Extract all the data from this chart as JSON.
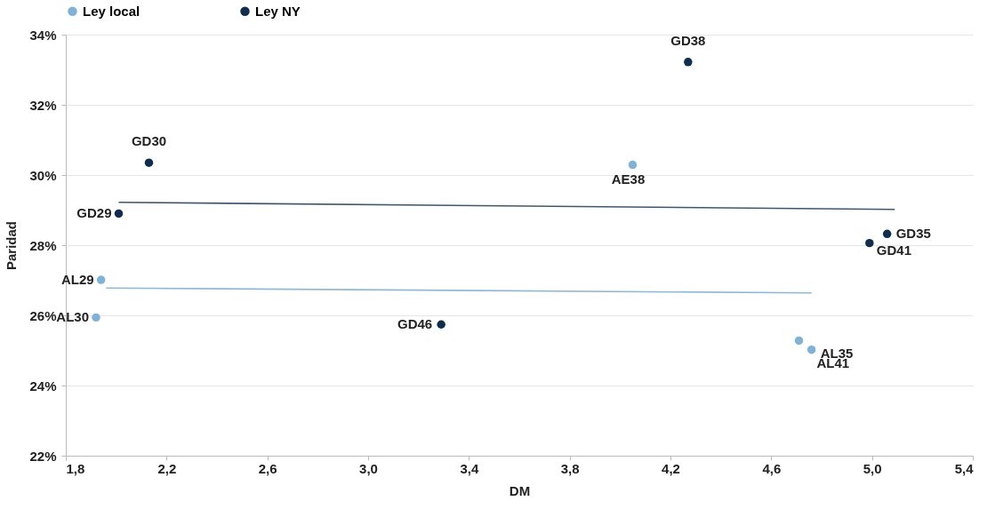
{
  "chart_data": {
    "type": "scatter",
    "xlabel": "DM",
    "ylabel": "Paridad",
    "series": [
      {
        "name": "Ley local",
        "color": "#7fb2d9",
        "x": [
          1.94,
          1.92,
          4.05,
          4.76,
          4.71
        ],
        "values": [
          27.01,
          25.94,
          30.29,
          25.02,
          25.28
        ]
      },
      {
        "name": "Ley NY",
        "color": "#0f2d4f",
        "x": [
          2.01,
          2.13,
          4.27,
          5.06,
          4.99,
          3.29
        ],
        "values": [
          28.9,
          30.35,
          33.22,
          28.32,
          28.06,
          25.74
        ]
      },
      {
        "type": "line",
        "marker": "none",
        "color": "#8db9dd",
        "x": [
          1.96,
          4.76
        ],
        "values": [
          26.78,
          26.64
        ]
      },
      {
        "type": "line",
        "marker": "none",
        "color": "#3b5873",
        "x": [
          2.01,
          5.09
        ],
        "values": [
          29.22,
          29.02
        ]
      }
    ],
    "annotations": [
      {
        "text": "AL29",
        "x": 1.94,
        "y": 27.01
      },
      {
        "text": "AL30",
        "x": 1.92,
        "y": 25.94
      },
      {
        "text": "AE38",
        "x": 4.05,
        "y": 30.29
      },
      {
        "text": "AL35",
        "x": 4.76,
        "y": 25.02
      },
      {
        "text": "AL41",
        "x": 4.71,
        "y": 25.28
      },
      {
        "text": "GD29",
        "x": 2.01,
        "y": 28.9
      },
      {
        "text": "GD30",
        "x": 2.13,
        "y": 30.35
      },
      {
        "text": "GD38",
        "x": 4.27,
        "y": 33.22
      },
      {
        "text": "GD35",
        "x": 5.06,
        "y": 28.32
      },
      {
        "text": "GD41",
        "x": 4.99,
        "y": 28.06
      },
      {
        "text": "GD46",
        "x": 3.29,
        "y": 25.74
      }
    ],
    "xlim": [
      1.8,
      5.4
    ],
    "xticks": [
      {
        "value": 1.8,
        "label": "1,8"
      },
      {
        "value": 2.2,
        "label": "2,2"
      },
      {
        "value": 2.6,
        "label": "2,6"
      },
      {
        "value": 3.0,
        "label": "3,0"
      },
      {
        "value": 3.4,
        "label": "3,4"
      },
      {
        "value": 3.8,
        "label": "3,8"
      },
      {
        "value": 4.2,
        "label": "4,2"
      },
      {
        "value": 4.6,
        "label": "4,6"
      },
      {
        "value": 5.0,
        "label": "5,0"
      },
      {
        "value": 5.4,
        "label": "5,4"
      }
    ],
    "ylim": [
      22,
      34
    ],
    "yticks": [
      {
        "value": 22,
        "label": "22%"
      },
      {
        "value": 24,
        "label": "24%"
      },
      {
        "value": 26,
        "label": "26%"
      },
      {
        "value": 28,
        "label": "28%"
      },
      {
        "value": 30,
        "label": "30%"
      },
      {
        "value": 32,
        "label": "32%"
      },
      {
        "value": 34,
        "label": "34%"
      }
    ],
    "grid": "y",
    "legend": "top",
    "marker": "circle"
  }
}
